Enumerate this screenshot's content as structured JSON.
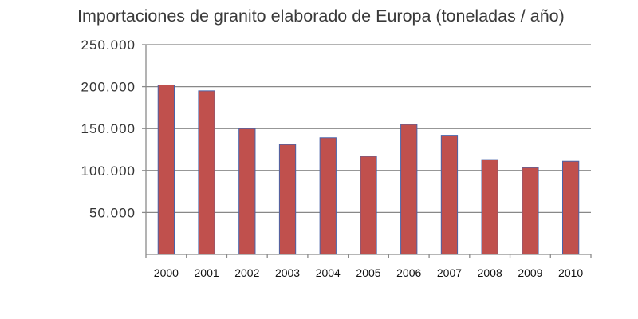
{
  "chart_data": {
    "type": "bar",
    "title": "Importaciones de granito elaborado de Europa (toneladas / año)",
    "xlabel": "",
    "ylabel": "",
    "categories": [
      "2000",
      "2001",
      "2002",
      "2003",
      "2004",
      "2005",
      "2006",
      "2007",
      "2008",
      "2009",
      "2010"
    ],
    "values": [
      202000,
      195000,
      150000,
      131000,
      139000,
      117000,
      155000,
      142000,
      113000,
      103500,
      111000
    ],
    "ylim": [
      0,
      250000
    ],
    "yticks": [
      50000,
      100000,
      150000,
      200000,
      250000
    ],
    "ytick_labels": [
      "50.000",
      "100.000",
      "150.000",
      "200.000",
      "250.000"
    ],
    "grid": true,
    "legend": "none",
    "bar_color": "#c0504d",
    "bar_edge_color": "#4a63a8"
  }
}
